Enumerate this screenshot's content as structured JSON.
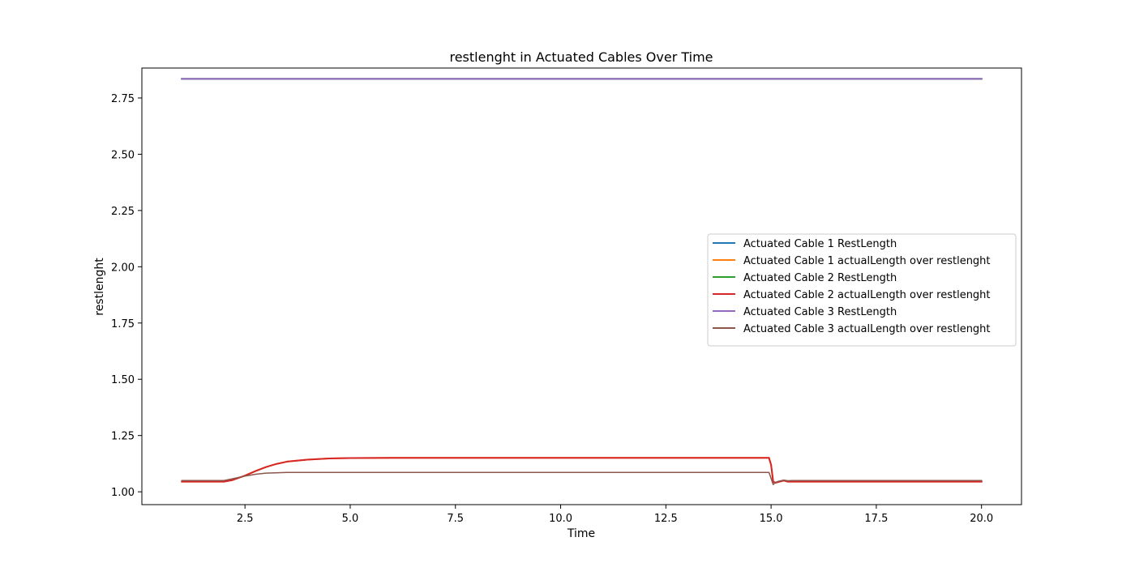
{
  "chart_data": {
    "type": "line",
    "title": "restlenght in Actuated Cables Over Time",
    "xlabel": "Time",
    "ylabel": "restlenght",
    "xlim": [
      0.05,
      20.95
    ],
    "ylim": [
      0.943,
      2.883
    ],
    "xticks": [
      2.5,
      5.0,
      7.5,
      10.0,
      12.5,
      15.0,
      17.5,
      20.0
    ],
    "xtick_labels": [
      "2.5",
      "5.0",
      "7.5",
      "10.0",
      "12.5",
      "15.0",
      "17.5",
      "20.0"
    ],
    "yticks": [
      1.0,
      1.25,
      1.5,
      1.75,
      2.0,
      2.25,
      2.5,
      2.75
    ],
    "ytick_labels": [
      "1.00",
      "1.25",
      "1.50",
      "1.75",
      "2.00",
      "2.25",
      "2.50",
      "2.75"
    ],
    "grid": false,
    "legend_position": "center-right",
    "series": [
      {
        "name": "Actuated Cable 1 RestLength",
        "color": "#1f77b4",
        "width": 2,
        "x": [
          1.0,
          20.0
        ],
        "y": [
          2.835,
          2.835
        ]
      },
      {
        "name": "Actuated Cable 1 actualLength over restlenght",
        "color": "#ff7f0e",
        "width": 2,
        "x": [
          1.0,
          2.0,
          2.2,
          2.5,
          2.75,
          3.0,
          3.25,
          3.5,
          4.0,
          4.5,
          5.0,
          6.0,
          8.0,
          10.0,
          12.0,
          14.0,
          14.95,
          15.0,
          15.05,
          15.1,
          15.2,
          15.3,
          15.4,
          15.5,
          16.0,
          18.0,
          20.0
        ],
        "y": [
          1.045,
          1.045,
          1.052,
          1.072,
          1.092,
          1.11,
          1.124,
          1.134,
          1.143,
          1.148,
          1.15,
          1.151,
          1.151,
          1.151,
          1.151,
          1.151,
          1.151,
          1.12,
          1.045,
          1.04,
          1.045,
          1.05,
          1.045,
          1.045,
          1.045,
          1.045,
          1.045
        ]
      },
      {
        "name": "Actuated Cable 2 RestLength",
        "color": "#2ca02c",
        "width": 2,
        "x": [
          1.0,
          20.0
        ],
        "y": [
          2.835,
          2.835
        ]
      },
      {
        "name": "Actuated Cable 2 actualLength over restlenght",
        "color": "#d62728",
        "width": 2,
        "x": [
          1.0,
          2.0,
          2.2,
          2.5,
          2.75,
          3.0,
          3.25,
          3.5,
          4.0,
          4.5,
          5.0,
          6.0,
          8.0,
          10.0,
          12.0,
          14.0,
          14.95,
          15.0,
          15.05,
          15.1,
          15.2,
          15.3,
          15.4,
          15.5,
          16.0,
          18.0,
          20.0
        ],
        "y": [
          1.045,
          1.045,
          1.052,
          1.072,
          1.092,
          1.11,
          1.124,
          1.134,
          1.143,
          1.148,
          1.15,
          1.151,
          1.151,
          1.151,
          1.151,
          1.151,
          1.151,
          1.12,
          1.045,
          1.04,
          1.045,
          1.05,
          1.045,
          1.045,
          1.045,
          1.045,
          1.045
        ]
      },
      {
        "name": "Actuated Cable 3 RestLength",
        "color": "#9467bd",
        "width": 2,
        "x": [
          1.0,
          20.0
        ],
        "y": [
          2.835,
          2.835
        ]
      },
      {
        "name": "Actuated Cable 3 actualLength over restlenght",
        "color": "#8c564b",
        "width": 1.5,
        "x": [
          1.0,
          2.0,
          2.2,
          2.5,
          2.75,
          3.0,
          3.5,
          4.0,
          6.0,
          10.0,
          14.0,
          14.95,
          15.0,
          15.05,
          15.1,
          15.2,
          15.3,
          15.4,
          15.5,
          16.0,
          18.0,
          20.0
        ],
        "y": [
          1.05,
          1.05,
          1.058,
          1.07,
          1.078,
          1.083,
          1.086,
          1.086,
          1.086,
          1.086,
          1.086,
          1.086,
          1.06,
          1.032,
          1.042,
          1.048,
          1.052,
          1.049,
          1.05,
          1.05,
          1.05,
          1.05
        ]
      }
    ]
  }
}
